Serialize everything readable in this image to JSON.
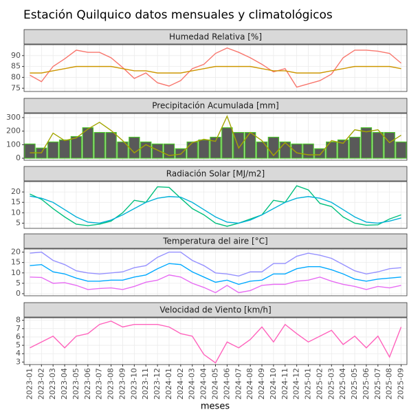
{
  "title": "Estación Quilquico datos mensuales y climatológicos",
  "x_label": "meses",
  "categories": [
    "2023-01",
    "2023-02",
    "2023-03",
    "2023-04",
    "2023-05",
    "2023-06",
    "2023-07",
    "2023-08",
    "2023-09",
    "2023-10",
    "2023-11",
    "2023-12",
    "2024-01",
    "2024-02",
    "2024-03",
    "2024-04",
    "2024-05",
    "2024-06",
    "2024-07",
    "2024-08",
    "2024-09",
    "2024-10",
    "2024-11",
    "2024-12",
    "2025-01",
    "2025-02",
    "2025-03",
    "2025-04",
    "2025-05",
    "2025-06",
    "2025-07",
    "2025-08",
    "2025-09"
  ],
  "chart_data": [
    {
      "type": "line",
      "title": "Humedad Relativa [%]",
      "ylim": [
        73.5,
        95
      ],
      "yticks": [
        75,
        80,
        85,
        90
      ],
      "grid": true,
      "series": [
        {
          "color": "#F8766D",
          "values": [
            81,
            78,
            85,
            88.5,
            92.5,
            91.5,
            91.5,
            89,
            84.5,
            79.5,
            82,
            77.5,
            76,
            78.5,
            84,
            86,
            91,
            93.5,
            91.5,
            89,
            86,
            82.5,
            84,
            75.5,
            77,
            78.5,
            81.5,
            89,
            92.5,
            92.5,
            92,
            91,
            86.5
          ]
        },
        {
          "color": "#CD9600",
          "values": [
            82,
            82,
            83,
            84,
            85,
            85,
            85,
            85,
            84,
            83,
            83,
            82,
            82,
            82,
            83,
            84,
            85,
            85,
            85,
            85,
            84,
            83,
            83,
            82,
            82,
            82,
            83,
            84,
            85,
            85,
            85,
            85,
            84
          ]
        }
      ]
    },
    {
      "type": "line",
      "title": "Precipitación Acumulada [mm]",
      "ylim": [
        -15,
        330
      ],
      "yticks": [
        0,
        100,
        200,
        300
      ],
      "grid": true,
      "series": [
        {
          "type": "bar",
          "color": "#595959",
          "edge_color": "#4CC32A",
          "values": [
            105,
            75,
            120,
            135,
            160,
            225,
            190,
            190,
            120,
            155,
            120,
            105,
            105,
            70,
            120,
            135,
            155,
            225,
            190,
            190,
            120,
            155,
            120,
            105,
            105,
            70,
            120,
            135,
            155,
            225,
            190,
            190,
            120
          ]
        },
        {
          "color": "#A3A500",
          "values": [
            40,
            40,
            185,
            130,
            150,
            215,
            265,
            205,
            130,
            40,
            100,
            60,
            20,
            30,
            115,
            140,
            125,
            310,
            75,
            190,
            130,
            20,
            115,
            40,
            25,
            25,
            130,
            110,
            210,
            195,
            210,
            115,
            170
          ]
        }
      ]
    },
    {
      "type": "line",
      "title": "Radiación Solar [MJ/m2]",
      "ylim": [
        2.5,
        25
      ],
      "yticks": [
        5,
        10,
        15,
        20
      ],
      "grid": true,
      "series": [
        {
          "color": "#00BF7D",
          "values": [
            19,
            16.5,
            12,
            8,
            4.5,
            3.8,
            4.5,
            6,
            10,
            16,
            15,
            22.5,
            22.2,
            17,
            12,
            9,
            5,
            3.5,
            5,
            7,
            9,
            16,
            15,
            23,
            21,
            14.5,
            13,
            8,
            5,
            4,
            4.2,
            7,
            9
          ]
        },
        {
          "color": "#00B0D8",
          "values": [
            18,
            17,
            15,
            11.5,
            8,
            5.5,
            5,
            6.5,
            9,
            12,
            15,
            17,
            17.8,
            17.5,
            15,
            11.5,
            8,
            5.5,
            5,
            6.5,
            9,
            12,
            15,
            17,
            17.8,
            17,
            15,
            11.5,
            8,
            5.5,
            5,
            6,
            7.5
          ]
        }
      ]
    },
    {
      "type": "line",
      "title": "Temperatura del aire [°C]",
      "ylim": [
        -1,
        21.5
      ],
      "yticks": [
        0,
        5,
        10,
        15,
        20
      ],
      "grid": true,
      "series": [
        {
          "color": "#9590FF",
          "values": [
            19.5,
            20,
            16,
            14,
            11,
            10,
            9.5,
            10,
            10.5,
            12.5,
            13.5,
            17.5,
            20,
            20,
            16,
            13.5,
            10,
            9.5,
            8.5,
            10.5,
            10.5,
            14.5,
            14.5,
            18,
            19.5,
            18.5,
            17,
            14,
            11,
            9.5,
            10.5,
            12,
            12.5
          ]
        },
        {
          "color": "#00A9FF",
          "values": [
            13.5,
            14,
            10.5,
            9.5,
            7.5,
            6,
            6,
            6.5,
            6.5,
            8,
            9,
            12,
            14.5,
            14,
            10.5,
            8,
            5.5,
            6.5,
            4.5,
            6,
            6.5,
            9.5,
            9.5,
            12,
            13,
            13,
            11.5,
            9.5,
            7,
            6,
            7,
            7.5,
            8
          ]
        },
        {
          "color": "#E76BF3",
          "values": [
            8,
            7.8,
            5,
            5.3,
            4,
            2,
            2.5,
            2.8,
            2,
            3.5,
            5.5,
            6.5,
            9,
            8,
            5,
            3,
            0.5,
            4,
            0.5,
            1.5,
            4,
            4.5,
            4.5,
            6,
            6.5,
            8,
            6,
            4.5,
            3.5,
            2,
            3.5,
            2.8,
            4
          ]
        }
      ]
    },
    {
      "type": "line",
      "title": "Velocidad de Viento [km/h]",
      "ylim": [
        2.7,
        8.3
      ],
      "yticks": [
        3,
        4,
        5,
        6,
        7,
        8
      ],
      "grid": true,
      "series": [
        {
          "color": "#FF62BC",
          "values": [
            4.7,
            5.4,
            6.1,
            4.7,
            6.1,
            6.4,
            7.5,
            7.9,
            7.2,
            7.5,
            7.5,
            7.5,
            7.2,
            6.4,
            6.1,
            3.9,
            2.9,
            5.4,
            4.7,
            5.7,
            7.2,
            5.4,
            7.5,
            6.4,
            5.4,
            6.1,
            6.8,
            5.1,
            6.1,
            4.7,
            6.1,
            3.6,
            7.2
          ]
        }
      ]
    }
  ]
}
